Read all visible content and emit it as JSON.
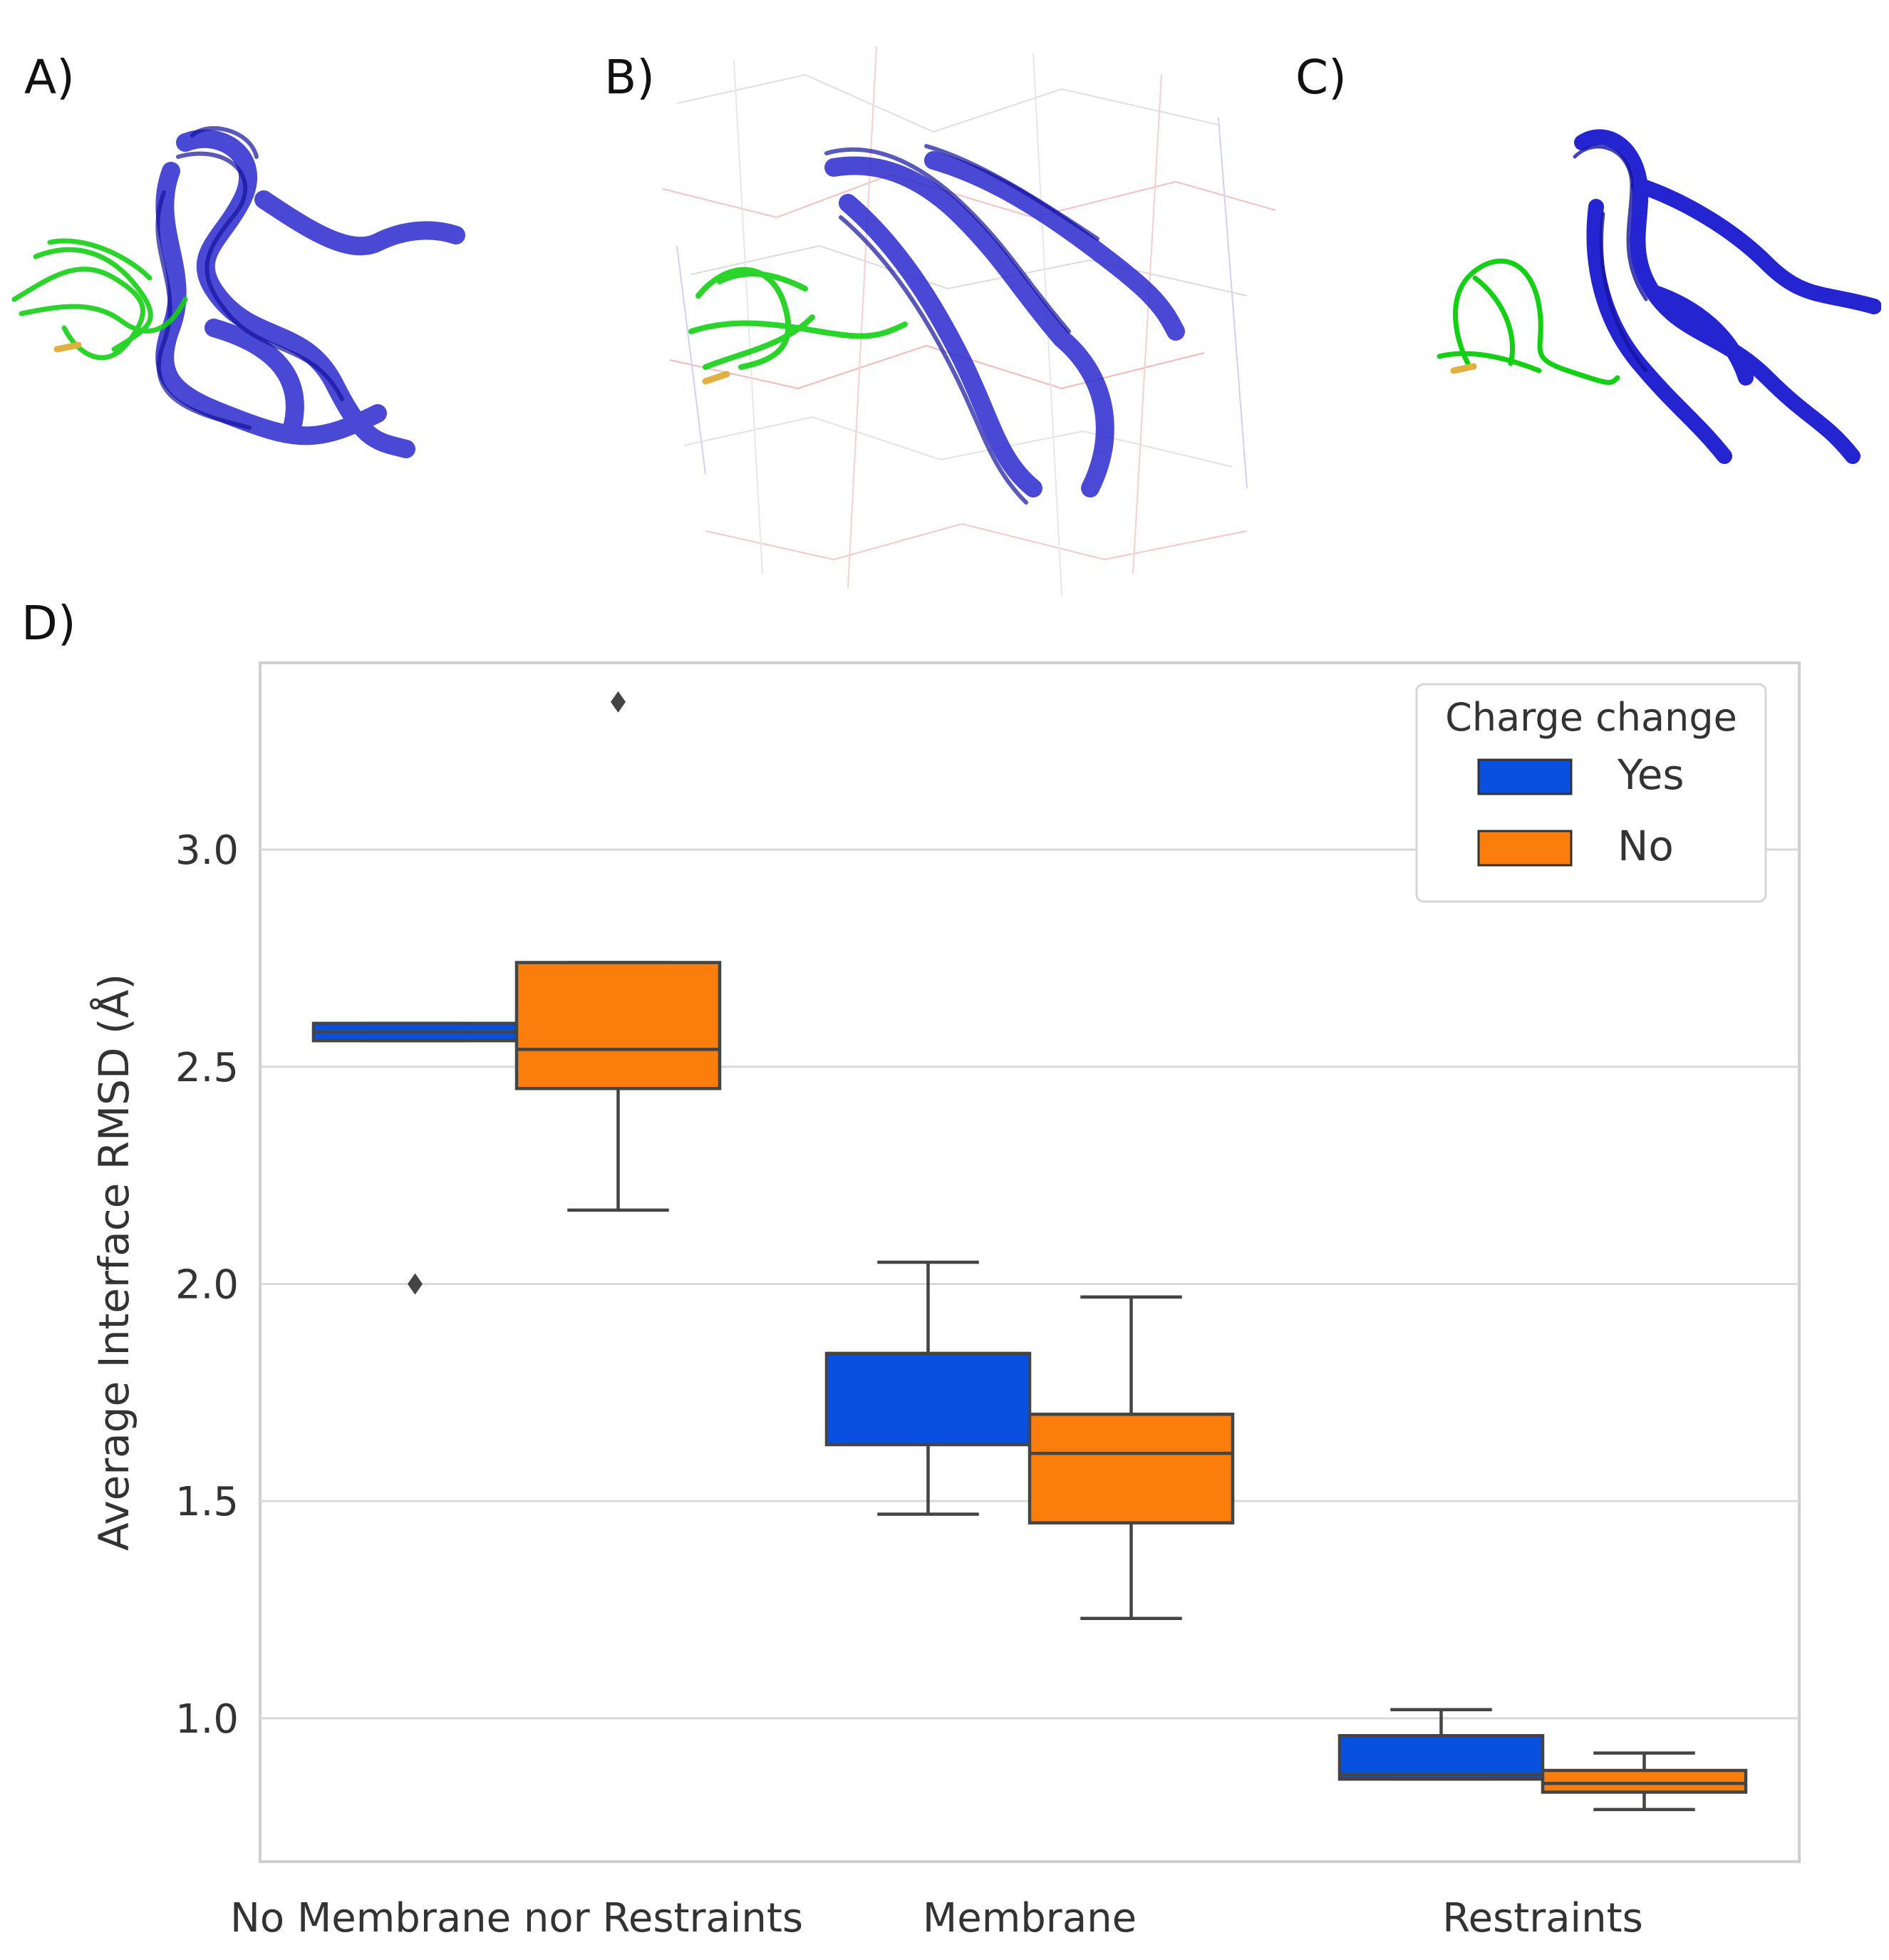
{
  "panels": {
    "a_label": "A)",
    "b_label": "B)",
    "c_label": "C)",
    "d_label": "D)"
  },
  "colors": {
    "yes": "#0a50e0",
    "no": "#fb7e0c",
    "protein_blue": "#2020c8",
    "peptide_green": "#10d010",
    "grid": "#d9d9d9",
    "line": "#444444"
  },
  "chart_data": {
    "type": "box",
    "title": "",
    "xlabel": "",
    "ylabel": "Average Interface RMSD (Å)",
    "ylim": [
      0.67,
      3.43
    ],
    "yticks": [
      1.0,
      1.5,
      2.0,
      2.5,
      3.0
    ],
    "ytick_labels": [
      "1.0",
      "1.5",
      "2.0",
      "2.5",
      "3.0"
    ],
    "categories": [
      "No Membrane nor Restraints",
      "Membrane",
      "Restraints"
    ],
    "legend": {
      "title": "Charge change",
      "position": "top-right"
    },
    "series": [
      {
        "name": "Yes",
        "boxes": [
          {
            "whisker_low": 2.56,
            "q1": 2.56,
            "median": 2.58,
            "q3": 2.6,
            "whisker_high": 2.6,
            "outliers": [
              2.0
            ]
          },
          {
            "whisker_low": 1.47,
            "q1": 1.63,
            "median": 1.84,
            "q3": 1.84,
            "whisker_high": 2.05,
            "outliers": []
          },
          {
            "whisker_low": 0.86,
            "q1": 0.86,
            "median": 0.87,
            "q3": 0.96,
            "whisker_high": 1.02,
            "outliers": []
          }
        ]
      },
      {
        "name": "No",
        "boxes": [
          {
            "whisker_low": 2.17,
            "q1": 2.45,
            "median": 2.54,
            "q3": 2.74,
            "whisker_high": 2.74,
            "outliers": [
              3.34
            ]
          },
          {
            "whisker_low": 1.23,
            "q1": 1.45,
            "median": 1.61,
            "q3": 1.7,
            "whisker_high": 1.97,
            "outliers": []
          },
          {
            "whisker_low": 0.79,
            "q1": 0.83,
            "median": 0.85,
            "q3": 0.88,
            "whisker_high": 0.92,
            "outliers": []
          }
        ]
      }
    ]
  }
}
